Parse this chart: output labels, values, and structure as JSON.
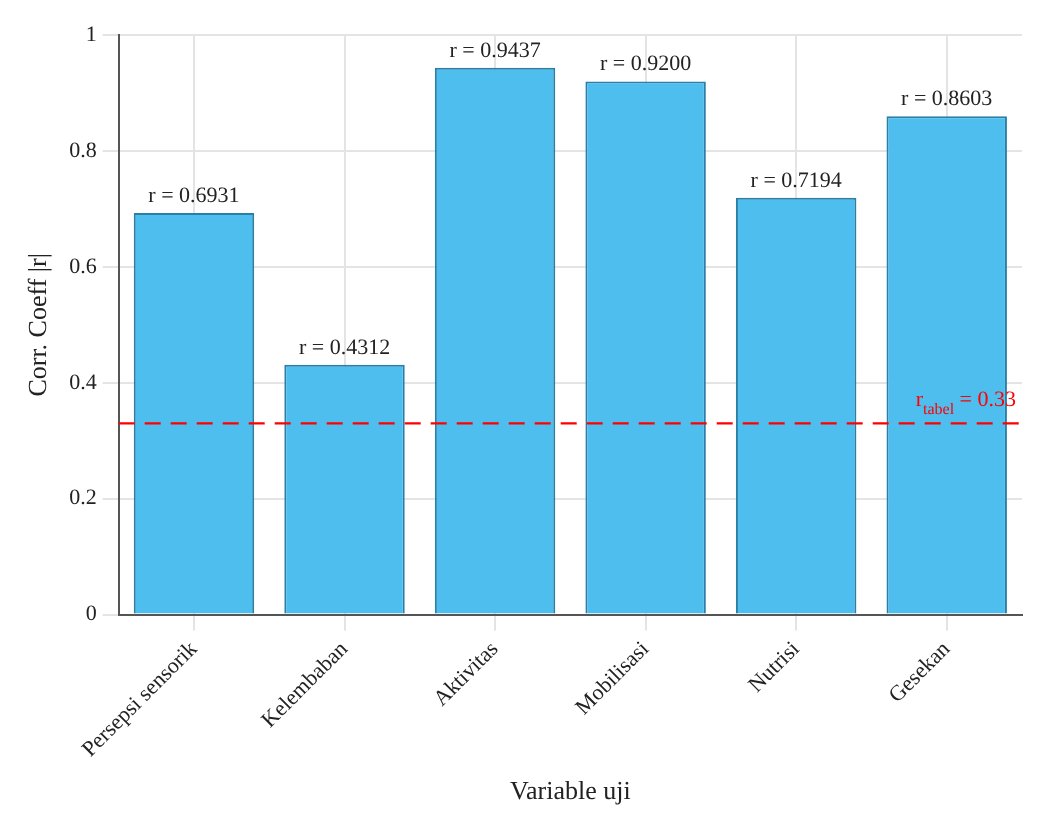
{
  "chart_data": {
    "type": "bar",
    "xlabel": "Variable uji",
    "ylabel": "Corr. Coeff |r|",
    "categories": [
      "Persepsi sensorik",
      "Kelembaban",
      "Aktivitas",
      "Mobilisasi",
      "Nutrisi",
      "Gesekan"
    ],
    "values": [
      0.6931,
      0.4312,
      0.9437,
      0.92,
      0.7194,
      0.8603
    ],
    "value_labels": [
      "r = 0.6931",
      "r = 0.4312",
      "r = 0.9437",
      "r = 0.9200",
      "r = 0.7194",
      "r = 0.8603"
    ],
    "color": "#4dbeee",
    "ylim": [
      0,
      1
    ],
    "yticks": [
      0,
      0.2,
      0.4,
      0.6,
      0.8,
      1
    ],
    "grid": true,
    "ref_lines": [
      {
        "axis": "y",
        "value": 0.33,
        "label": "r$_{tabel}$ = 0.33",
        "color": "#ff0000",
        "line_style": "dashed"
      }
    ]
  }
}
